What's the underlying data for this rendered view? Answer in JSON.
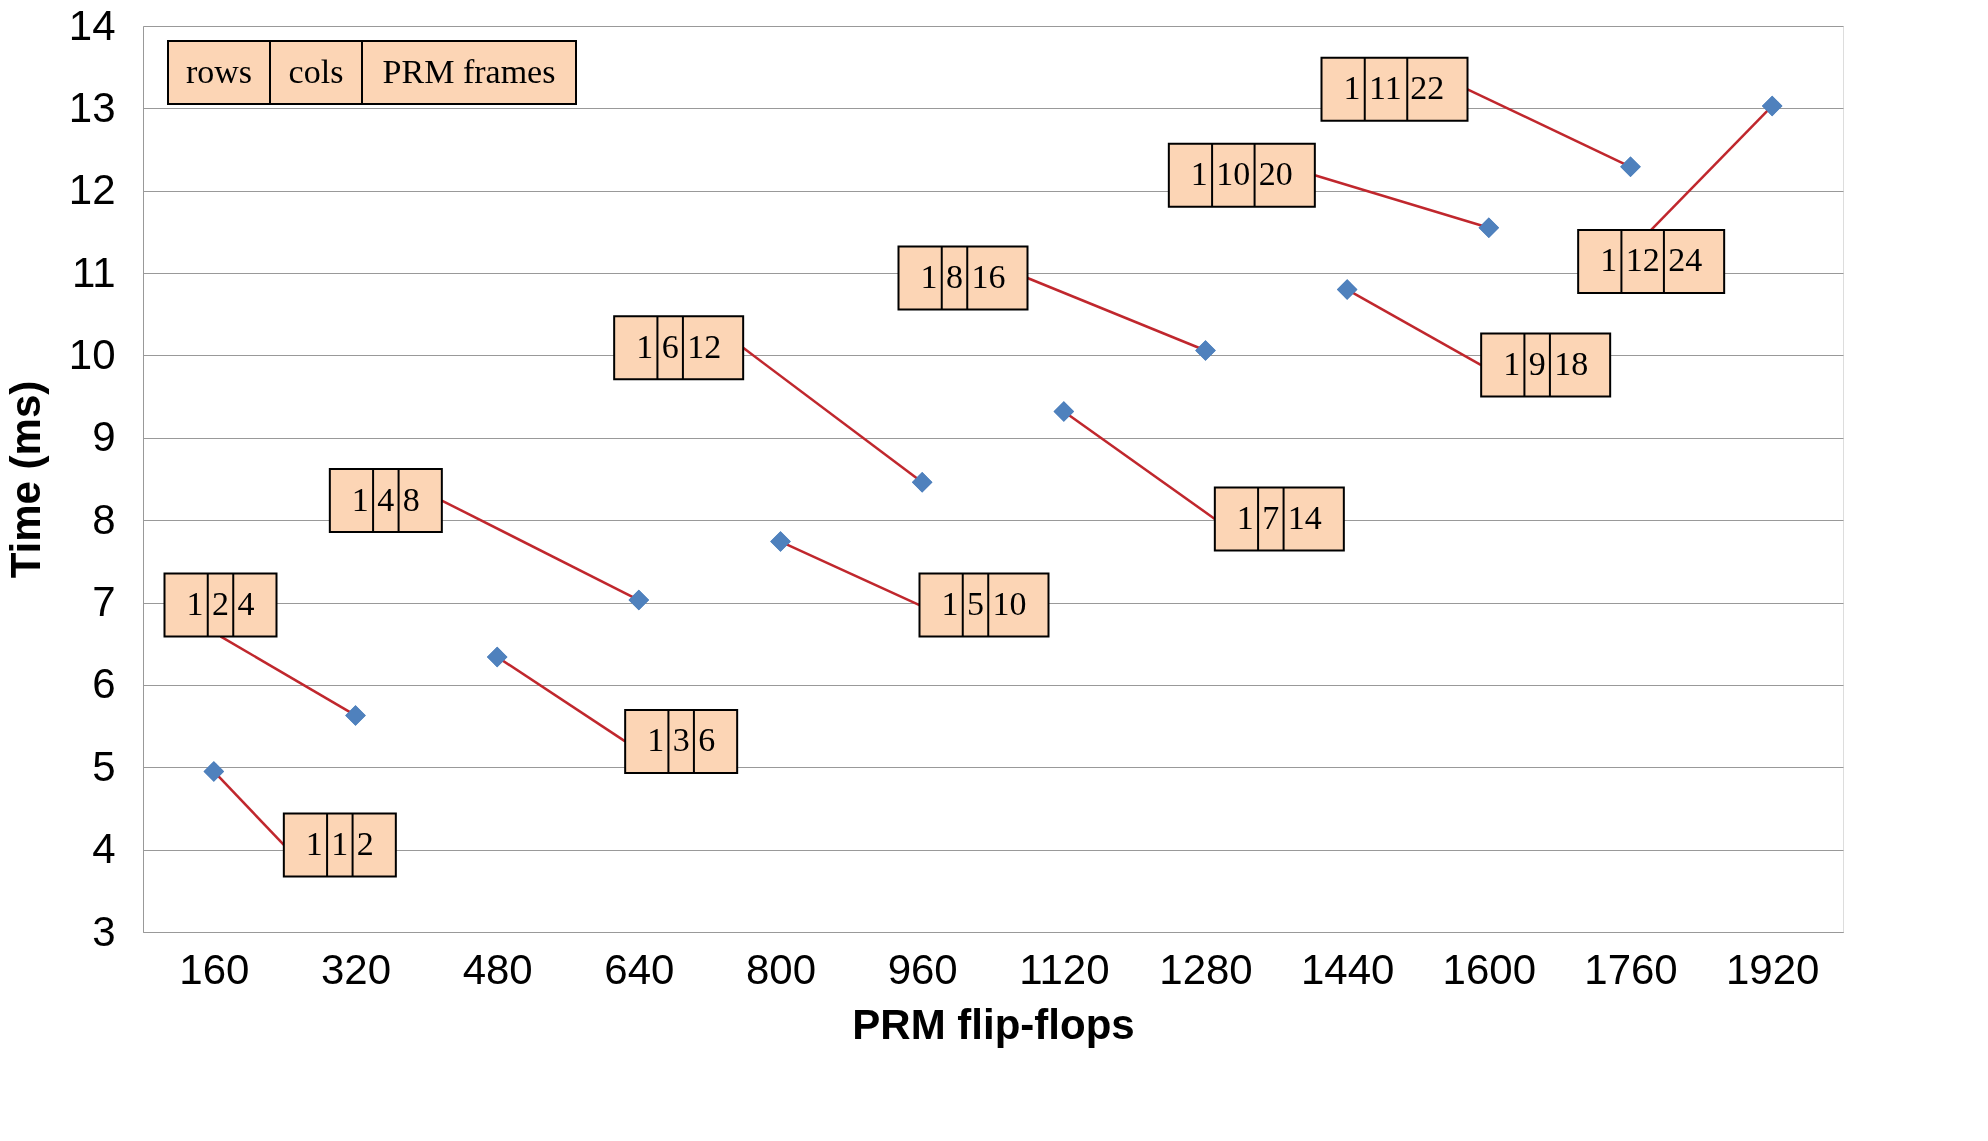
{
  "chart_data": {
    "type": "scatter",
    "xlabel": "PRM flip-flops",
    "ylabel": "Time (ms)",
    "categories": [
      "160",
      "320",
      "480",
      "640",
      "800",
      "960",
      "1120",
      "1280",
      "1440",
      "1600",
      "1760",
      "1920"
    ],
    "values": [
      4.95,
      5.63,
      6.34,
      7.03,
      7.74,
      8.46,
      9.32,
      10.06,
      10.8,
      11.55,
      12.29,
      13.03
    ],
    "color": "#4f81bd",
    "marker": "diamond",
    "ylim": [
      3,
      14
    ],
    "yticks": [
      3,
      4,
      5,
      6,
      7,
      8,
      9,
      10,
      11,
      12,
      13,
      14
    ],
    "grid": "y",
    "annotations": [
      "rows",
      "cols",
      "PRM frames",
      {
        "text": "1 1 2",
        "x": "160",
        "y": 4.95
      },
      {
        "text": "1 2 4",
        "x": "320",
        "y": 5.63
      },
      {
        "text": "1 3 6",
        "x": "480",
        "y": 6.34
      },
      {
        "text": "1 4 8",
        "x": "640",
        "y": 7.03
      },
      {
        "text": "1 5 10",
        "x": "800",
        "y": 7.74
      },
      {
        "text": "1 6 12",
        "x": "960",
        "y": 8.46
      },
      {
        "text": "1 7 14",
        "x": "1120",
        "y": 9.32
      },
      {
        "text": "1 8 16",
        "x": "1280",
        "y": 10.06
      },
      {
        "text": "1 9 18",
        "x": "1440",
        "y": 10.8
      },
      {
        "text": "1 10 20",
        "x": "1600",
        "y": 11.55
      },
      {
        "text": "1 11 22",
        "x": "1760",
        "y": 12.29
      },
      {
        "text": "1 12 24",
        "x": "1920",
        "y": 13.03
      }
    ]
  }
}
